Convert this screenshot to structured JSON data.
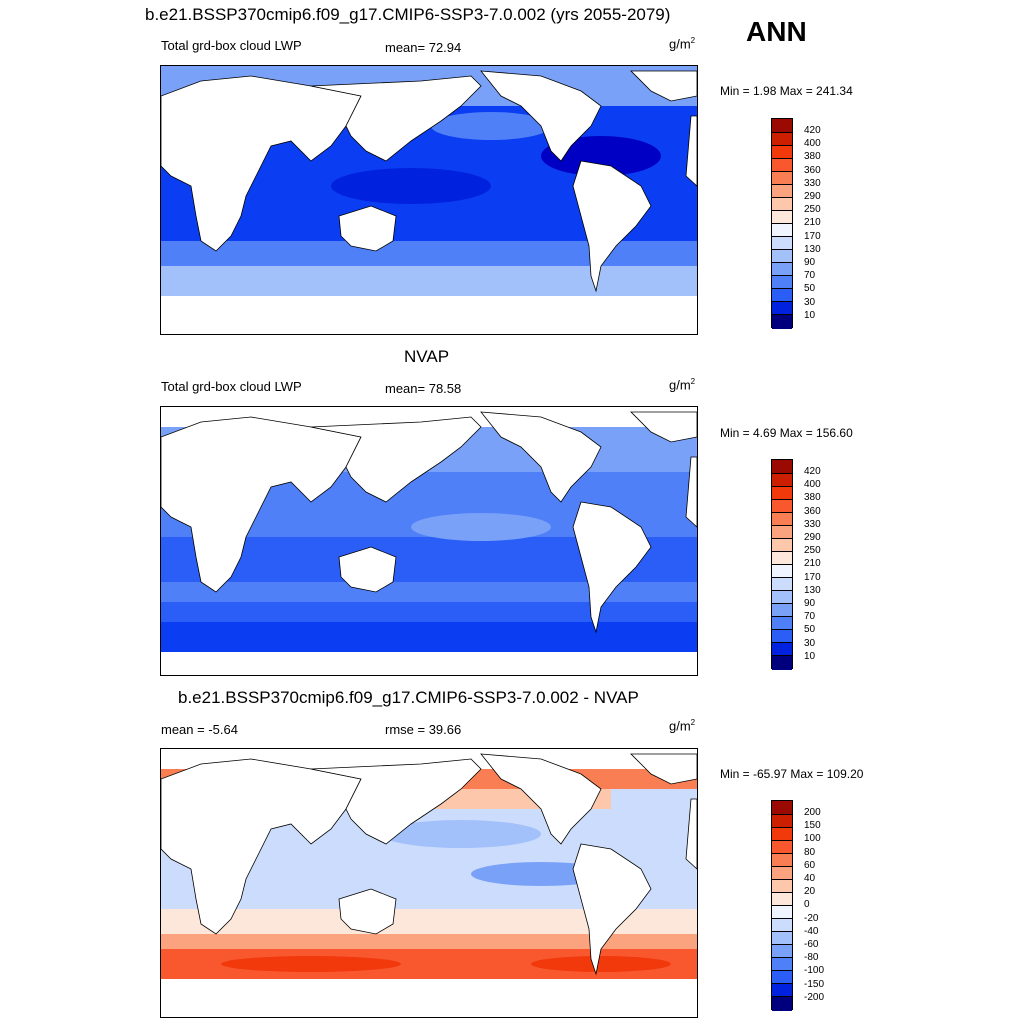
{
  "header": {
    "title": "b.e21.BSSP370cmip6.f09_g17.CMIP6-SSP3-7.0.002 (yrs 2055-2079)",
    "season": "ANN"
  },
  "colors": {
    "abs_scale": [
      "#00007f",
      "#0000c4",
      "#0021de",
      "#0b3ef2",
      "#2a5ef6",
      "#5080f7",
      "#7aa1f8",
      "#a2c0fa",
      "#cbdcfc",
      "#f0f4ff",
      "#fde6da",
      "#fcc7ab",
      "#fba37e",
      "#fa7e54",
      "#f9582e",
      "#f1390c",
      "#cc1f00",
      "#9a0a00",
      "#6e0000"
    ],
    "diff_scale": [
      "#00007f",
      "#0000c4",
      "#0021de",
      "#0b3ef2",
      "#2a5ef6",
      "#5080f7",
      "#7aa1f8",
      "#a2c0fa",
      "#cbdcfc",
      "#f0f4ff",
      "#fff6ef",
      "#fde6da",
      "#fcc7ab",
      "#fba37e",
      "#fa7e54",
      "#f9582e",
      "#f1390c",
      "#cc1f00",
      "#9a0a00",
      "#6e0000"
    ]
  },
  "panels": [
    {
      "subtitle": "",
      "left_label": "Total grd-box cloud LWP",
      "center_label": "mean=  72.94",
      "unit": "g/m",
      "unit_exp": "2",
      "minmax": "Min =   1.98 Max = 241.34",
      "levels": [
        "420",
        "400",
        "380",
        "360",
        "330",
        "290",
        "250",
        "210",
        "170",
        "130",
        "90",
        "70",
        "50",
        "30",
        "10"
      ]
    },
    {
      "subtitle": "NVAP",
      "left_label": "Total grd-box cloud LWP",
      "center_label": "mean=  78.58",
      "unit": "g/m",
      "unit_exp": "2",
      "minmax": "Min =   4.69 Max = 156.60",
      "levels": [
        "420",
        "400",
        "380",
        "360",
        "330",
        "290",
        "250",
        "210",
        "170",
        "130",
        "90",
        "70",
        "50",
        "30",
        "10"
      ]
    },
    {
      "subtitle": "b.e21.BSSP370cmip6.f09_g17.CMIP6-SSP3-7.0.002 - NVAP",
      "left_label": "mean =  -5.64",
      "center_label": "rmse =  39.66",
      "unit": "g/m",
      "unit_exp": "2",
      "minmax": "Min = -65.97 Max = 109.20",
      "levels": [
        "200",
        "150",
        "100",
        "80",
        "60",
        "40",
        "20",
        "0",
        "-20",
        "-40",
        "-60",
        "-80",
        "-100",
        "-150",
        "-200"
      ]
    }
  ]
}
